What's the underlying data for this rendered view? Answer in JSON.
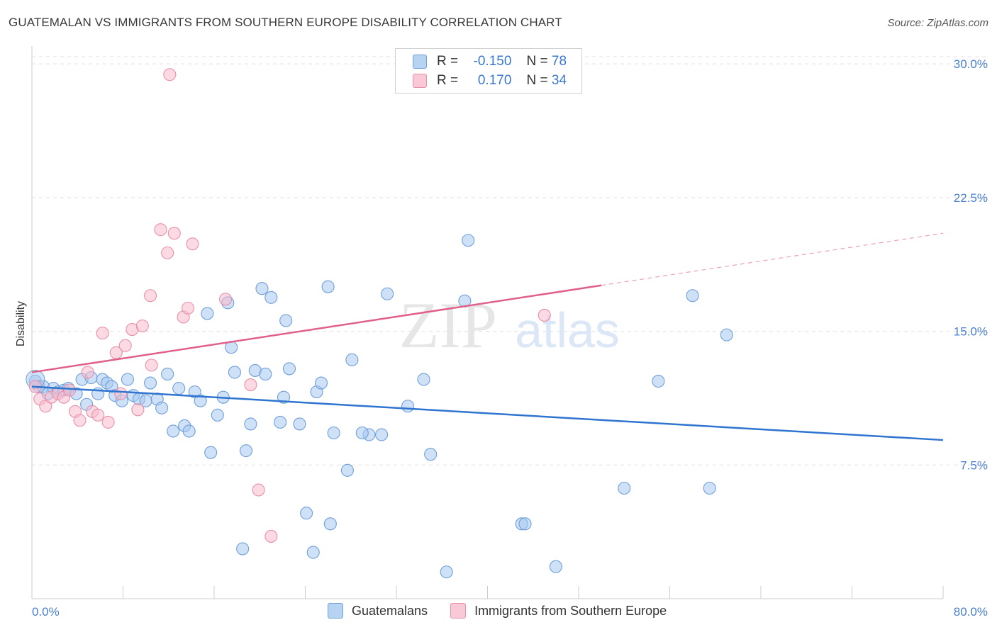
{
  "header": {
    "title": "GUATEMALAN VS IMMIGRANTS FROM SOUTHERN EUROPE DISABILITY CORRELATION CHART",
    "source": "Source: ZipAtlas.com"
  },
  "watermark": {
    "zip": "ZIP",
    "atlas": "atlas"
  },
  "legend": {
    "rows": [
      {
        "r_label": "R =",
        "r_value": "-0.150",
        "n_label": "N =",
        "n_value": "78"
      },
      {
        "r_label": "R =",
        "r_value": "0.170",
        "n_label": "N =",
        "n_value": "34"
      }
    ]
  },
  "bottom_legend": {
    "series1": "Guatemalans",
    "series2": "Immigrants from Southern Europe"
  },
  "colors": {
    "blue_fill": "#a8c8f0",
    "blue_stroke": "#6f9fd8",
    "blue_line": "#2f75d0",
    "pink_fill": "#f8bccd",
    "pink_stroke": "#e890aa",
    "pink_line": "#e0608a",
    "grid": "#e0e0e0",
    "axis_text": "#4a7fd0"
  },
  "chart_data": {
    "type": "scatter",
    "title": "GUATEMALAN VS IMMIGRANTS FROM SOUTHERN EUROPE DISABILITY CORRELATION CHART",
    "xlabel": "",
    "ylabel": "Disability",
    "xlim": [
      0,
      80
    ],
    "ylim": [
      0,
      31
    ],
    "x_tick_labels": [
      "0.0%",
      "80.0%"
    ],
    "y_ticks": [
      7.5,
      15.0,
      22.5,
      30.0
    ],
    "y_tick_labels": [
      "7.5%",
      "15.0%",
      "22.5%",
      "30.0%"
    ],
    "grid": true,
    "series": [
      {
        "name": "Guatemalans",
        "color": "#a8c8f0",
        "r": -0.15,
        "n": 78,
        "trend": {
          "x0": 0,
          "y0": 11.9,
          "x1": 80,
          "y1": 8.9,
          "dashed_from": null
        },
        "points": [
          [
            0.3,
            12.2
          ],
          [
            0.6,
            11.9
          ],
          [
            1.0,
            11.9
          ],
          [
            1.4,
            11.5
          ],
          [
            1.9,
            11.8
          ],
          [
            2.3,
            11.6
          ],
          [
            2.8,
            11.7
          ],
          [
            3.2,
            11.8
          ],
          [
            3.9,
            11.5
          ],
          [
            4.4,
            12.3
          ],
          [
            4.8,
            10.9
          ],
          [
            5.2,
            12.4
          ],
          [
            5.8,
            11.5
          ],
          [
            6.2,
            12.3
          ],
          [
            6.6,
            12.1
          ],
          [
            7.0,
            11.9
          ],
          [
            7.3,
            11.4
          ],
          [
            7.9,
            11.1
          ],
          [
            8.4,
            12.3
          ],
          [
            8.9,
            11.4
          ],
          [
            9.4,
            11.2
          ],
          [
            10.0,
            11.1
          ],
          [
            10.4,
            12.1
          ],
          [
            11.0,
            11.2
          ],
          [
            11.4,
            10.7
          ],
          [
            11.9,
            12.6
          ],
          [
            12.4,
            9.4
          ],
          [
            12.9,
            11.8
          ],
          [
            13.4,
            9.7
          ],
          [
            13.8,
            9.4
          ],
          [
            14.3,
            11.6
          ],
          [
            14.8,
            11.1
          ],
          [
            15.4,
            16.0
          ],
          [
            15.7,
            8.2
          ],
          [
            16.3,
            10.3
          ],
          [
            16.8,
            11.3
          ],
          [
            17.2,
            16.6
          ],
          [
            17.5,
            14.1
          ],
          [
            17.8,
            12.7
          ],
          [
            18.8,
            8.3
          ],
          [
            19.2,
            9.8
          ],
          [
            19.6,
            12.8
          ],
          [
            20.2,
            17.4
          ],
          [
            21.0,
            16.9
          ],
          [
            21.8,
            9.9
          ],
          [
            22.1,
            11.3
          ],
          [
            22.3,
            15.6
          ],
          [
            22.6,
            12.9
          ],
          [
            23.5,
            9.8
          ],
          [
            24.1,
            4.8
          ],
          [
            24.7,
            2.6
          ],
          [
            25.0,
            11.6
          ],
          [
            25.4,
            12.1
          ],
          [
            26.0,
            17.5
          ],
          [
            26.2,
            4.2
          ],
          [
            26.5,
            9.3
          ],
          [
            27.7,
            7.2
          ],
          [
            28.1,
            13.4
          ],
          [
            29.6,
            9.2
          ],
          [
            30.7,
            9.2
          ],
          [
            31.2,
            17.1
          ],
          [
            33.0,
            10.8
          ],
          [
            34.4,
            12.3
          ],
          [
            35.0,
            8.1
          ],
          [
            36.4,
            1.5
          ],
          [
            38.0,
            16.7
          ],
          [
            38.3,
            20.1
          ],
          [
            43.0,
            4.2
          ],
          [
            43.3,
            4.2
          ],
          [
            46.0,
            1.8
          ],
          [
            52.0,
            6.2
          ],
          [
            55.0,
            12.2
          ],
          [
            58.0,
            17.0
          ],
          [
            59.5,
            6.2
          ],
          [
            61.0,
            14.8
          ],
          [
            18.5,
            2.8
          ],
          [
            20.5,
            12.6
          ],
          [
            29.0,
            9.3
          ]
        ]
      },
      {
        "name": "Immigrants from Southern Europe",
        "color": "#f8bccd",
        "r": 0.17,
        "n": 34,
        "trend": {
          "x0": 0,
          "y0": 12.7,
          "x1": 80,
          "y1": 20.5,
          "dashed_from": 50
        },
        "points": [
          [
            0.3,
            11.9
          ],
          [
            0.7,
            11.2
          ],
          [
            1.2,
            10.8
          ],
          [
            1.7,
            11.3
          ],
          [
            2.3,
            11.5
          ],
          [
            2.8,
            11.3
          ],
          [
            3.3,
            11.7
          ],
          [
            3.8,
            10.5
          ],
          [
            4.2,
            10.0
          ],
          [
            4.9,
            12.7
          ],
          [
            5.3,
            10.5
          ],
          [
            5.8,
            10.3
          ],
          [
            6.2,
            14.9
          ],
          [
            6.7,
            9.9
          ],
          [
            7.4,
            13.8
          ],
          [
            7.8,
            11.5
          ],
          [
            8.2,
            14.2
          ],
          [
            8.8,
            15.1
          ],
          [
            9.3,
            10.6
          ],
          [
            9.7,
            15.3
          ],
          [
            10.4,
            17.0
          ],
          [
            10.5,
            13.1
          ],
          [
            11.3,
            20.7
          ],
          [
            11.9,
            19.4
          ],
          [
            12.1,
            29.4
          ],
          [
            12.5,
            20.5
          ],
          [
            13.3,
            15.8
          ],
          [
            13.7,
            16.3
          ],
          [
            14.1,
            19.9
          ],
          [
            17.0,
            16.8
          ],
          [
            19.2,
            12.0
          ],
          [
            19.9,
            6.1
          ],
          [
            21.0,
            3.5
          ],
          [
            45.0,
            15.9
          ]
        ]
      }
    ]
  }
}
